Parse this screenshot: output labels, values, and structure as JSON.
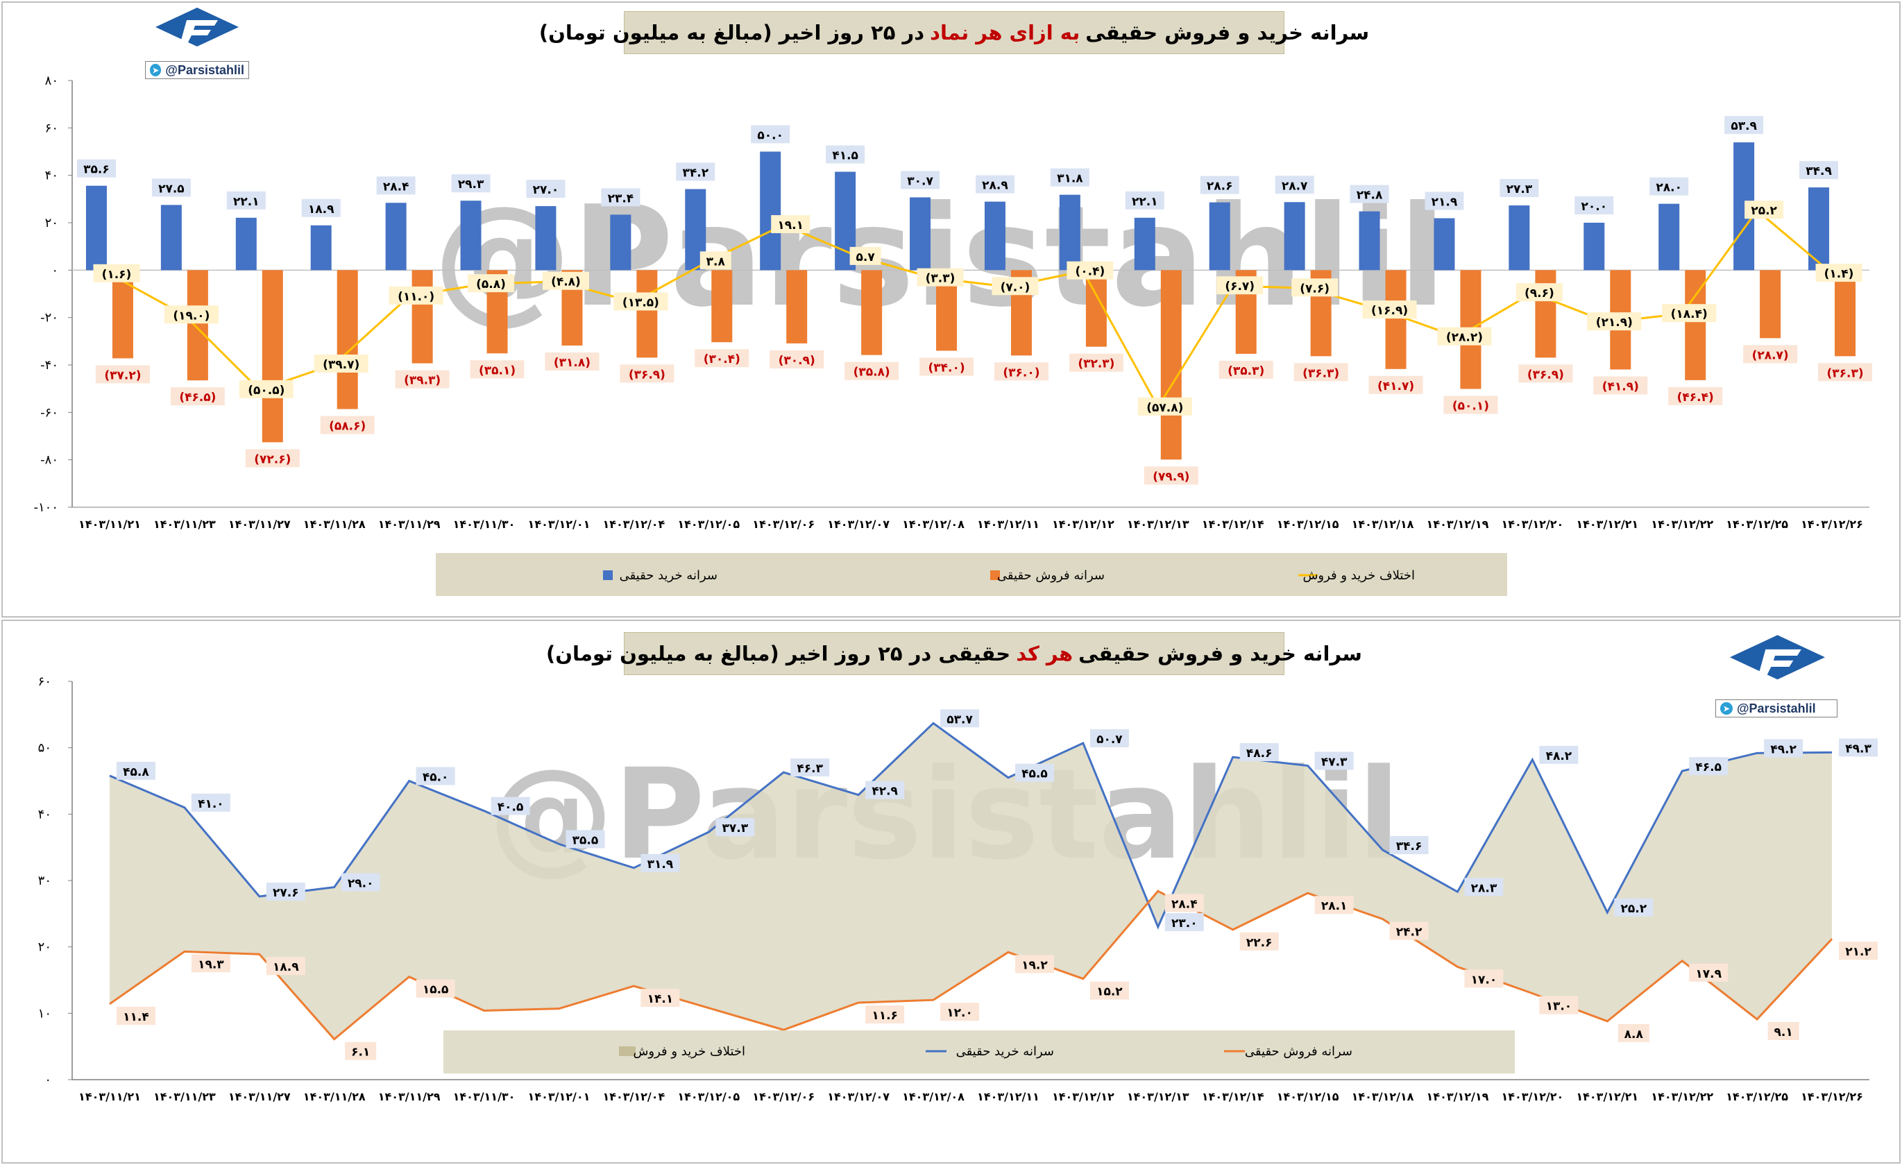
{
  "brand": {
    "handle": "@Parsistahlil",
    "watermark": "@Parsistahlil",
    "logo_letter": "F"
  },
  "chart_top": {
    "title_pre": "سرانه خرید و فروش حقیقی",
    "title_highlight": "به ازای هر نماد",
    "title_post": "در ۲۵ روز اخیر (مبالغ به میلیون تومان)",
    "yticks": [
      "۸۰",
      "۶۰",
      "۴۰",
      "۲۰",
      "۰",
      "-۲۰",
      "-۴۰",
      "-۶۰",
      "-۸۰",
      "-۱۰۰"
    ]
  },
  "chart_bottom": {
    "title_pre": "سرانه خرید و فروش حقیقی",
    "title_highlight": "هر کد",
    "title_post": "حقیقی در ۲۵ روز اخیر (مبالغ به میلیون تومان)",
    "yticks": [
      "۶۰",
      "۵۰",
      "۴۰",
      "۳۰",
      "۲۰",
      "۱۰",
      "۰"
    ]
  },
  "colors": {
    "buy": "#4472c4",
    "sell": "#ed7d31",
    "diff": "#ffc000",
    "area": "#ddd9c4",
    "area_edge": "#c4bd97",
    "title_bg": "#ddd9c4",
    "highlight": "#c00000",
    "brand": "#1f5ea8"
  },
  "chart_data": [
    {
      "type": "bar",
      "categories": [
        "۱۴۰۳/۱۱/۲۱",
        "۱۴۰۳/۱۱/۲۳",
        "۱۴۰۳/۱۱/۲۷",
        "۱۴۰۳/۱۱/۲۸",
        "۱۴۰۳/۱۱/۲۹",
        "۱۴۰۳/۱۱/۳۰",
        "۱۴۰۳/۱۲/۰۱",
        "۱۴۰۳/۱۲/۰۴",
        "۱۴۰۳/۱۲/۰۵",
        "۱۴۰۳/۱۲/۰۶",
        "۱۴۰۳/۱۲/۰۷",
        "۱۴۰۳/۱۲/۰۸",
        "۱۴۰۳/۱۲/۱۱",
        "۱۴۰۳/۱۲/۱۲",
        "۱۴۰۳/۱۲/۱۳",
        "۱۴۰۳/۱۲/۱۴",
        "۱۴۰۳/۱۲/۱۵",
        "۱۴۰۳/۱۲/۱۸",
        "۱۴۰۳/۱۲/۱۹",
        "۱۴۰۳/۱۲/۲۰",
        "۱۴۰۳/۱۲/۲۱",
        "۱۴۰۳/۱۲/۲۲",
        "۱۴۰۳/۱۲/۲۵",
        "۱۴۰۳/۱۲/۲۶"
      ],
      "ylim": [
        -100,
        80
      ],
      "grid": false,
      "legend_position": "bottom",
      "series": [
        {
          "name": "سرانه خرید حقیقی",
          "kind": "bar",
          "values": [
            35.6,
            27.5,
            22.1,
            18.9,
            28.4,
            29.3,
            27.0,
            23.4,
            34.2,
            50.0,
            41.5,
            30.7,
            28.9,
            31.8,
            22.1,
            28.6,
            28.7,
            24.8,
            21.9,
            27.3,
            20.0,
            28.0,
            53.9,
            34.9
          ],
          "labels": [
            "۳۵.۶",
            "۲۷.۵",
            "۲۲.۱",
            "۱۸.۹",
            "۲۸.۴",
            "۲۹.۳",
            "۲۷.۰",
            "۲۳.۴",
            "۳۴.۲",
            "۵۰.۰",
            "۴۱.۵",
            "۳۰.۷",
            "۲۸.۹",
            "۳۱.۸",
            "۲۲.۱",
            "۲۸.۶",
            "۲۸.۷",
            "۲۴.۸",
            "۲۱.۹",
            "۲۷.۳",
            "۲۰.۰",
            "۲۸.۰",
            "۵۳.۹",
            "۳۴.۹"
          ]
        },
        {
          "name": "سرانه فروش حقیقی",
          "kind": "bar",
          "values": [
            -37.2,
            -46.5,
            -72.6,
            -58.6,
            -39.3,
            -35.1,
            -31.8,
            -36.9,
            -30.4,
            -30.9,
            -35.8,
            -34.0,
            -36.0,
            -32.3,
            -79.9,
            -35.3,
            -36.3,
            -41.7,
            -50.1,
            -36.9,
            -41.9,
            -46.4,
            -28.7,
            -36.3
          ],
          "labels": [
            "(۳۷.۲)",
            "(۴۶.۵)",
            "(۷۲.۶)",
            "(۵۸.۶)",
            "(۳۹.۳)",
            "(۳۵.۱)",
            "(۳۱.۸)",
            "(۳۶.۹)",
            "(۳۰.۴)",
            "(۳۰.۹)",
            "(۳۵.۸)",
            "(۳۴.۰)",
            "(۳۶.۰)",
            "(۳۲.۳)",
            "(۷۹.۹)",
            "(۳۵.۳)",
            "(۳۶.۳)",
            "(۴۱.۷)",
            "(۵۰.۱)",
            "(۳۶.۹)",
            "(۴۱.۹)",
            "(۴۶.۴)",
            "(۲۸.۷)",
            "(۳۶.۳)"
          ]
        },
        {
          "name": "اختلاف خرید و فروش",
          "kind": "line",
          "values": [
            -1.6,
            -19.0,
            -50.5,
            -39.7,
            -11.0,
            -5.8,
            -4.8,
            -13.5,
            3.8,
            19.1,
            5.7,
            -3.3,
            -7.0,
            -0.4,
            -57.8,
            -6.7,
            -7.6,
            -16.9,
            -28.2,
            -9.6,
            -21.9,
            -18.4,
            25.2,
            -1.4
          ],
          "labels": [
            "(۱.۶)",
            "(۱۹.۰)",
            "(۵۰.۵)",
            "(۳۹.۷)",
            "(۱۱.۰)",
            "(۵.۸)",
            "(۴.۸)",
            "(۱۳.۵)",
            "۳.۸",
            "۱۹.۱",
            "۵.۷",
            "(۳.۳)",
            "(۷.۰)",
            "(۰.۴)",
            "(۵۷.۸)",
            "(۶.۷)",
            "(۷.۶)",
            "(۱۶.۹)",
            "(۲۸.۲)",
            "(۹.۶)",
            "(۲۱.۹)",
            "(۱۸.۴)",
            "۲۵.۲",
            "(۱.۴)"
          ]
        }
      ]
    },
    {
      "type": "line",
      "categories": [
        "۱۴۰۳/۱۱/۲۱",
        "۱۴۰۳/۱۱/۲۳",
        "۱۴۰۳/۱۱/۲۷",
        "۱۴۰۳/۱۱/۲۸",
        "۱۴۰۳/۱۱/۲۹",
        "۱۴۰۳/۱۱/۳۰",
        "۱۴۰۳/۱۲/۰۱",
        "۱۴۰۳/۱۲/۰۴",
        "۱۴۰۳/۱۲/۰۵",
        "۱۴۰۳/۱۲/۰۶",
        "۱۴۰۳/۱۲/۰۷",
        "۱۴۰۳/۱۲/۰۸",
        "۱۴۰۳/۱۲/۱۱",
        "۱۴۰۳/۱۲/۱۲",
        "۱۴۰۳/۱۲/۱۳",
        "۱۴۰۳/۱۲/۱۴",
        "۱۴۰۳/۱۲/۱۵",
        "۱۴۰۳/۱۲/۱۸",
        "۱۴۰۳/۱۲/۱۹",
        "۱۴۰۳/۱۲/۲۰",
        "۱۴۰۳/۱۲/۲۱",
        "۱۴۰۳/۱۲/۲۲",
        "۱۴۰۳/۱۲/۲۵",
        "۱۴۰۳/۱۲/۲۶"
      ],
      "ylim": [
        0,
        60
      ],
      "grid": false,
      "legend_position": "bottom",
      "series": [
        {
          "name": "سرانه خرید حقیقی",
          "kind": "line",
          "values": [
            45.8,
            41.0,
            27.6,
            29.0,
            45.0,
            40.5,
            35.5,
            31.9,
            37.3,
            46.3,
            42.9,
            53.7,
            45.5,
            50.7,
            23.0,
            48.6,
            47.3,
            34.6,
            28.3,
            48.2,
            25.2,
            46.5,
            49.2,
            49.3
          ],
          "labels": [
            "۴۵.۸",
            "۴۱.۰",
            "۲۷.۶",
            "۲۹.۰",
            "۴۵.۰",
            "۴۰.۵",
            "۳۵.۵",
            "۳۱.۹",
            "۳۷.۳",
            "۴۶.۳",
            "۴۲.۹",
            "۵۳.۷",
            "۴۵.۵",
            "۵۰.۷",
            "۲۳.۰",
            "۴۸.۶",
            "۴۷.۳",
            "۳۴.۶",
            "۲۸.۳",
            "۴۸.۲",
            "۲۵.۲",
            "۴۶.۵",
            "۴۹.۲",
            "۴۹.۳"
          ]
        },
        {
          "name": "سرانه فروش حقیقی",
          "kind": "line",
          "values": [
            11.4,
            19.3,
            18.9,
            6.1,
            15.5,
            10.4,
            10.7,
            14.1,
            10.8,
            7.5,
            11.6,
            12.0,
            19.2,
            15.2,
            28.4,
            22.6,
            28.1,
            24.2,
            17.0,
            13.0,
            8.8,
            17.9,
            9.1,
            21.2
          ],
          "labels": [
            "۱۱.۴",
            "۱۹.۳",
            "۱۸.۹",
            "۶.۱",
            "۱۵.۵",
            "",
            "",
            "۱۴.۱",
            "",
            "",
            "۱۱.۶",
            "۱۲.۰",
            "۱۹.۲",
            "۱۵.۲",
            "۲۸.۴",
            "۲۲.۶",
            "۲۸.۱",
            "۲۴.۲",
            "۱۷.۰",
            "۱۳.۰",
            "۸.۸",
            "۱۷.۹",
            "۹.۱",
            "۲۱.۲"
          ]
        },
        {
          "name": "اختلاف خرید و فروش",
          "kind": "area",
          "values_note": ""
        }
      ]
    }
  ]
}
